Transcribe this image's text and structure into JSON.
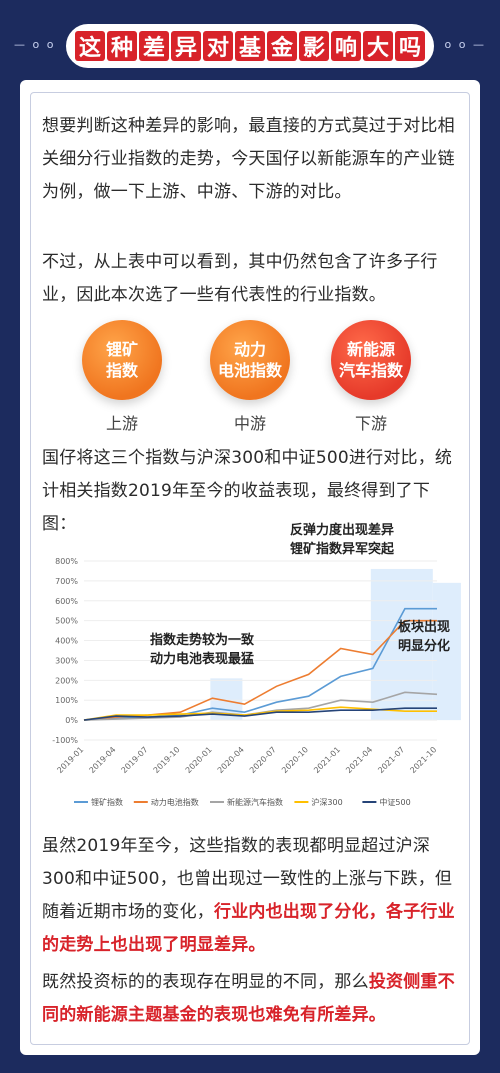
{
  "header": {
    "deco_left": "— o o",
    "deco_right": "o o —",
    "title_chars": [
      "这",
      "种",
      "差",
      "异",
      "对",
      "基",
      "金",
      "影",
      "响",
      "大",
      "吗"
    ]
  },
  "para1": "想要判断这种差异的影响，最直接的方式莫过于对比相关细分行业指数的走势，今天国仔以新能源车的产业链为例，做一下上游、中游、下游的对比。",
  "para2": "不过，从上表中可以看到，其中仍然包含了许多子行业，因此本次选了一些有代表性的行业指数。",
  "circles": [
    {
      "line1": "锂矿",
      "line2": "指数",
      "label": "上游",
      "color": "#f0751f"
    },
    {
      "line1": "动力",
      "line2": "电池指数",
      "label": "中游",
      "color": "#f0751f"
    },
    {
      "line1": "新能源",
      "line2": "汽车指数",
      "label": "下游",
      "color": "#e63a2a"
    }
  ],
  "para3": "国仔将这三个指数与沪深300和中证500进行对比，统计相关指数2019年至今的收益表现，最终得到了下图：",
  "chart_data": {
    "type": "line",
    "x": [
      "2019-01",
      "2019-04",
      "2019-07",
      "2019-10",
      "2020-01",
      "2020-04",
      "2020-07",
      "2020-10",
      "2021-01",
      "2021-04",
      "2021-07",
      "2021-10"
    ],
    "ylim": [
      -100,
      800
    ],
    "yticks": [
      "800%",
      "700%",
      "600%",
      "500%",
      "400%",
      "300%",
      "200%",
      "100%",
      "0%",
      "-100%"
    ],
    "grid": true,
    "legend_position": "bottom",
    "annotations": [
      {
        "line1": "反弹力度出现差异",
        "line2": "锂矿指数异军突起"
      },
      {
        "line1": "指数走势较为一致",
        "line2": "动力电池表现最猛"
      },
      {
        "line1": "板块出现",
        "line2": "明显分化"
      }
    ],
    "series": [
      {
        "name": "锂矿指数",
        "color": "#5b9bd5",
        "values": [
          0,
          10,
          15,
          25,
          60,
          40,
          90,
          120,
          220,
          260,
          560,
          560
        ]
      },
      {
        "name": "动力电池指数",
        "color": "#ed7d31",
        "values": [
          0,
          15,
          25,
          40,
          110,
          80,
          170,
          230,
          360,
          330,
          500,
          500
        ]
      },
      {
        "name": "新能源汽车指数",
        "color": "#a5a5a5",
        "values": [
          0,
          5,
          10,
          15,
          40,
          25,
          50,
          60,
          100,
          90,
          140,
          130
        ]
      },
      {
        "name": "沪深300",
        "color": "#ffc000",
        "values": [
          0,
          25,
          25,
          30,
          35,
          25,
          45,
          50,
          65,
          55,
          45,
          45
        ]
      },
      {
        "name": "中证500",
        "color": "#264478",
        "values": [
          0,
          20,
          15,
          20,
          30,
          20,
          40,
          40,
          50,
          50,
          60,
          60
        ]
      }
    ]
  },
  "para4_a": "虽然2019年至今，这些指数的表现都明显超过沪深300和中证500，也曾出现过一致性的上涨与下跌，但随着近期市场的变化，",
  "para4_b": "行业内也出现了分化，各子行业的走势上也出现了明显差异。",
  "para5_a": "既然投资标的的表现存在明显的不同，那么",
  "para5_b": "投资侧重不同的新能源主题基金的表现也难免有所差异。"
}
